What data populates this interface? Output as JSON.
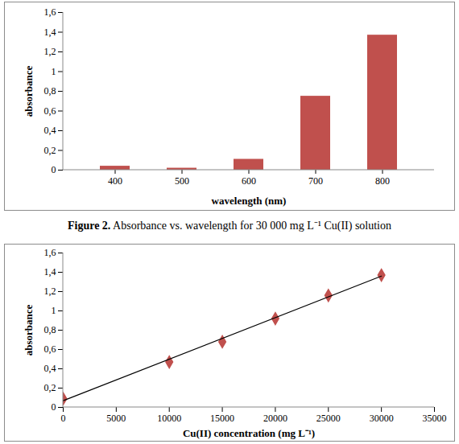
{
  "chart_data": [
    {
      "type": "bar",
      "caption": "Figure 2. Absorbance vs. wavelength for 30 000 mg L⁻¹ Cu(II) solution",
      "xlabel": "wavelength (nm)",
      "ylabel": "absorbance",
      "categories": [
        "400",
        "500",
        "600",
        "700",
        "800"
      ],
      "values": [
        0.04,
        0.02,
        0.11,
        0.75,
        1.37
      ],
      "color": "#c0504d",
      "ylim": [
        0,
        1.6
      ],
      "yticks": [
        0,
        {
          "value": 0.2,
          "label": "0,2"
        },
        {
          "value": 0.4,
          "label": "0,4"
        },
        {
          "value": 0.6,
          "label": "0,6"
        },
        {
          "value": 0.8,
          "label": "0,8"
        },
        1,
        {
          "value": 1.2,
          "label": "1,2"
        },
        {
          "value": 1.4,
          "label": "1,4"
        },
        {
          "value": 1.6,
          "label": "1,6"
        }
      ],
      "grid": false
    },
    {
      "type": "scatter",
      "xlabel": "Cu(II) concentration (mg L⁻¹)",
      "ylabel": "absorbance",
      "series": [
        {
          "type": "scatter",
          "marker": "diamond",
          "color": "#c0504d",
          "x": [
            0,
            10000,
            15000,
            20000,
            25000,
            30000
          ],
          "values": [
            0.09,
            0.47,
            0.68,
            0.92,
            1.16,
            1.37
          ]
        },
        {
          "type": "line",
          "line_style": "solid",
          "color": "#000000",
          "x": [
            0,
            30000
          ],
          "values": [
            0.07,
            1.36
          ]
        }
      ],
      "xlim": [
        0,
        35000
      ],
      "xticks": [
        0,
        5000,
        10000,
        15000,
        20000,
        25000,
        30000,
        35000
      ],
      "ylim": [
        0,
        1.6
      ],
      "yticks": [
        0,
        {
          "value": 0.2,
          "label": "0,2"
        },
        {
          "value": 0.4,
          "label": "0,4"
        },
        {
          "value": 0.6,
          "label": "0,6"
        },
        {
          "value": 0.8,
          "label": "0,8"
        },
        1,
        {
          "value": 1.2,
          "label": "1,2"
        },
        {
          "value": 1.4,
          "label": "1,4"
        },
        {
          "value": 1.6,
          "label": "1,6"
        }
      ],
      "grid": false
    }
  ]
}
